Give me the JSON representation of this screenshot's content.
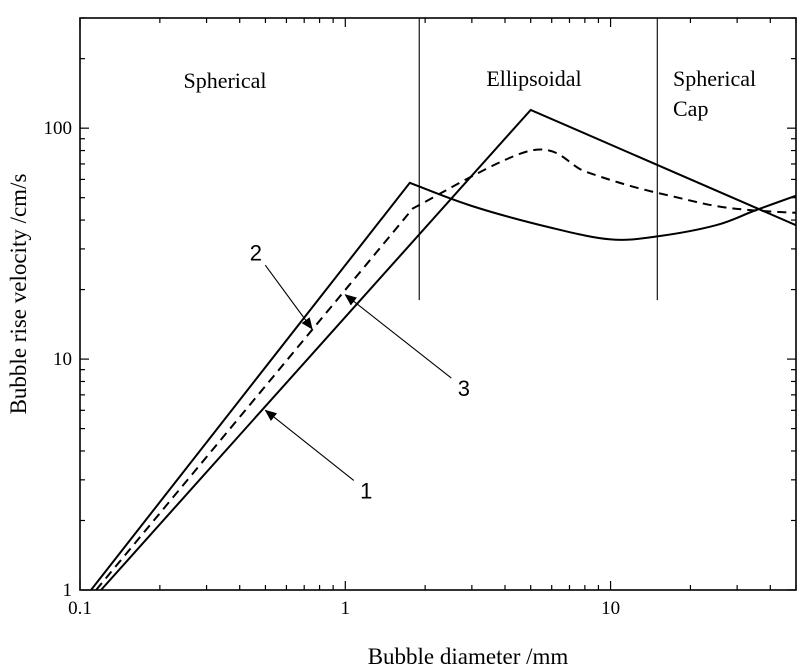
{
  "chart_data": {
    "type": "line",
    "xscale": "log",
    "yscale": "log",
    "xlim": [
      0.1,
      50
    ],
    "ylim": [
      1,
      300
    ],
    "xlabel": "Bubble diameter /mm",
    "ylabel": "Bubble rise velocity /cm/s",
    "x_ticks": [
      {
        "value": 0.1,
        "label": "0.1"
      },
      {
        "value": 1,
        "label": "1"
      },
      {
        "value": 10,
        "label": "10"
      }
    ],
    "y_ticks": [
      {
        "value": 1,
        "label": "1"
      },
      {
        "value": 10,
        "label": "10"
      },
      {
        "value": 100,
        "label": "100"
      }
    ],
    "regions": [
      {
        "label": "Spherical",
        "x_start": 0.1,
        "x_end": 1.9
      },
      {
        "label": "Ellipsoidal",
        "x_start": 1.9,
        "x_end": 15
      },
      {
        "label": "Spherical Cap",
        "x_start": 15,
        "x_end": 50
      }
    ],
    "dividers": [
      {
        "x": 1.9,
        "y_from": 18,
        "y_to": 400
      },
      {
        "x": 15,
        "y_from": 18,
        "y_to": 400
      }
    ],
    "series": [
      {
        "name": "1",
        "style": "solid",
        "x": [
          0.12,
          5,
          50
        ],
        "y": [
          1,
          120,
          38
        ],
        "label_anchor": {
          "x": 0.5,
          "y": 6
        },
        "label_pos": {
          "x": 1.2,
          "y": 2.7
        }
      },
      {
        "name": "2",
        "style": "solid",
        "x": [
          0.11,
          1.75,
          3,
          6,
          10,
          15,
          25,
          35,
          50
        ],
        "y": [
          1,
          58,
          46,
          37,
          33,
          34,
          38,
          44,
          51
        ],
        "label_anchor": {
          "x": 0.75,
          "y": 13.5
        },
        "label_pos": {
          "x": 0.46,
          "y": 29
        }
      },
      {
        "name": "3",
        "style": "dashed",
        "x": [
          0.115,
          1.8,
          5,
          8,
          12,
          18,
          25,
          35,
          50
        ],
        "y": [
          1,
          45,
          80,
          65,
          56,
          50,
          46,
          44,
          43
        ],
        "label_anchor": {
          "x": 1.0,
          "y": 19
        },
        "label_pos": {
          "x": 2.8,
          "y": 7.5
        }
      }
    ]
  }
}
